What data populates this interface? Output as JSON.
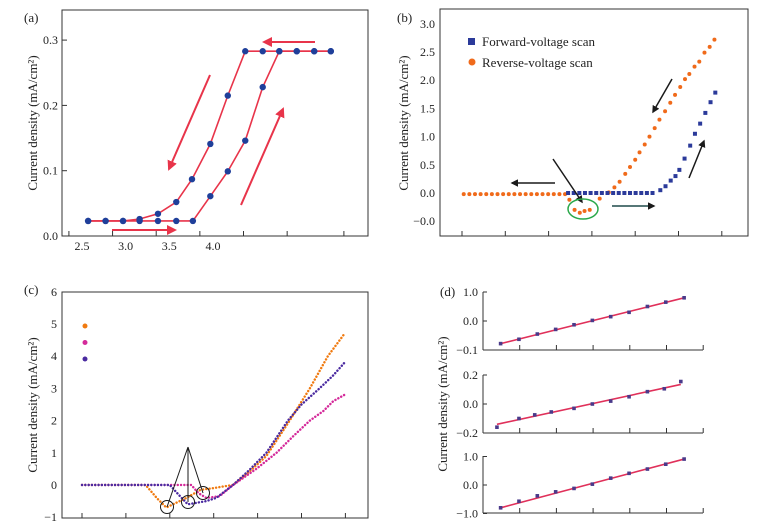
{
  "chart_data": [
    {
      "panel": "(a)",
      "type": "line",
      "ylabel": "Current density (mA/cm²)",
      "xlabel": "",
      "xlim": [
        2.35,
        5.85
      ],
      "ylim": [
        0.0,
        0.35
      ],
      "x_ticks": [
        "2.5",
        "3.0",
        "3.5",
        "4.0"
      ],
      "y_ticks": [
        "0.0",
        "0.1",
        "0.2",
        "0.3"
      ],
      "grid": false,
      "line_color": "#e8344a",
      "marker_color": "#1f3f9a",
      "series": [
        {
          "x": [
            2.57,
            2.77,
            2.97,
            3.16,
            3.37,
            3.58,
            3.77,
            3.97,
            4.17,
            4.37,
            4.57,
            4.76,
            4.96,
            5.16,
            5.35
          ],
          "y": [
            0.023,
            0.023,
            0.023,
            0.023,
            0.023,
            0.023,
            0.023,
            0.061,
            0.099,
            0.146,
            0.228,
            0.283,
            0.283,
            0.283,
            0.283
          ]
        },
        {
          "x": [
            5.35,
            5.16,
            4.96,
            4.76,
            4.57,
            4.37,
            4.17,
            3.97,
            3.76,
            3.58,
            3.37,
            3.16,
            2.97,
            2.77,
            2.57
          ],
          "y": [
            0.283,
            0.283,
            0.283,
            0.283,
            0.283,
            0.283,
            0.215,
            0.141,
            0.087,
            0.052,
            0.034,
            0.026,
            0.023,
            0.023,
            0.023
          ]
        }
      ]
    },
    {
      "panel": "(b)",
      "type": "scatter",
      "ylabel": "Current density (mA/cm²)",
      "ylim": [
        -0.75,
        3.25
      ],
      "y_ticks": [
        "3.0",
        "2.5",
        "2.0",
        "1.5",
        "1.0",
        "0.5",
        "0.0",
        "−0.0"
      ],
      "x_tick_count": 7,
      "grid": false,
      "legend": "top-left",
      "series": [
        {
          "name": "Forward-voltage scan",
          "color": "#2b3a9a",
          "marker": "square",
          "x": [
            2.45,
            2.58,
            2.71,
            2.84,
            2.97,
            3.1,
            3.23,
            3.36,
            3.49,
            3.62,
            3.75,
            3.88,
            4.01,
            4.14,
            4.27,
            4.4,
            4.58,
            4.7,
            4.82,
            4.93,
            5.02,
            5.14,
            5.27,
            5.38,
            5.5,
            5.62,
            5.74,
            5.85
          ],
          "y": [
            0,
            0,
            0,
            0,
            0,
            0,
            0,
            0,
            0,
            0,
            0,
            0,
            0,
            0,
            0,
            0,
            0.05,
            0.12,
            0.22,
            0.3,
            0.41,
            0.61,
            0.84,
            1.05,
            1.23,
            1.42,
            1.61,
            1.78
          ]
        },
        {
          "name": "Reverse-voltage scan",
          "color": "#f06a1a",
          "marker": "circle",
          "x": [
            0.04,
            0.17,
            0.3,
            0.43,
            0.56,
            0.69,
            0.82,
            0.95,
            1.08,
            1.21,
            1.34,
            1.47,
            1.6,
            1.73,
            1.86,
            1.99,
            2.12,
            2.25,
            2.38,
            2.48,
            2.6,
            2.72,
            2.83,
            2.95,
            3.18,
            3.39,
            3.52,
            3.64,
            3.77,
            3.88,
            4.0,
            4.1,
            4.22,
            4.33,
            4.45,
            4.56,
            4.69,
            4.81,
            4.92,
            5.04,
            5.15,
            5.25,
            5.37,
            5.48,
            5.6,
            5.72,
            5.83
          ],
          "y": [
            -0.02,
            -0.02,
            -0.02,
            -0.02,
            -0.02,
            -0.02,
            -0.02,
            -0.02,
            -0.02,
            -0.02,
            -0.02,
            -0.02,
            -0.02,
            -0.02,
            -0.02,
            -0.02,
            -0.02,
            -0.02,
            -0.02,
            -0.12,
            -0.3,
            -0.35,
            -0.32,
            -0.3,
            -0.1,
            0.01,
            0.1,
            0.2,
            0.34,
            0.46,
            0.59,
            0.72,
            0.86,
            1.0,
            1.15,
            1.3,
            1.45,
            1.6,
            1.74,
            1.88,
            2.02,
            2.11,
            2.24,
            2.33,
            2.49,
            2.59,
            2.72
          ]
        }
      ],
      "annotation_colors": {
        "arrows": "#1a1a1a",
        "highlight_ellipse": "#2aa84a"
      }
    },
    {
      "panel": "(c)",
      "type": "line",
      "ylabel": "Current density (mA/cm²)",
      "ylim": [
        -1,
        6
      ],
      "y_ticks": [
        "6",
        "5",
        "4",
        "3",
        "2",
        "1",
        "0",
        "−1"
      ],
      "x_tick_count": 7,
      "grid": false,
      "legend": "top-left",
      "series": [
        {
          "color": "#f07a10",
          "x": [
            0,
            0.5,
            1.0,
            1.45,
            1.7,
            1.92,
            2.15,
            2.38,
            2.7,
            2.98,
            3.2,
            3.44,
            3.8,
            4.2,
            4.73,
            5.19,
            5.6,
            5.98
          ],
          "y": [
            0,
            0,
            0,
            0,
            -0.4,
            -0.7,
            -0.55,
            -0.4,
            -0.15,
            -0.1,
            -0.05,
            0,
            0.4,
            0.9,
            2.0,
            3.0,
            4.0,
            4.7
          ]
        },
        {
          "color": "#d42a9a",
          "x": [
            0,
            0.5,
            1.0,
            1.5,
            2.0,
            2.49,
            2.65,
            2.83,
            3.13,
            3.44,
            3.97,
            4.43,
            4.8,
            5.19,
            5.5,
            5.72,
            5.98
          ],
          "y": [
            0,
            0,
            0,
            0,
            0,
            0,
            -0.25,
            -0.4,
            -0.35,
            0,
            0.5,
            1.0,
            1.5,
            2.0,
            2.3,
            2.6,
            2.8
          ]
        },
        {
          "color": "#4a2aa0",
          "x": [
            0,
            0.5,
            1.0,
            1.5,
            2.0,
            2.2,
            2.41,
            2.83,
            3.06,
            3.44,
            3.8,
            4.2,
            4.69,
            5.0,
            5.41,
            5.72,
            5.98
          ],
          "y": [
            0,
            0,
            0,
            0,
            0,
            -0.3,
            -0.6,
            -0.5,
            -0.4,
            0,
            0.45,
            1.0,
            2.0,
            2.5,
            3.0,
            3.4,
            3.8
          ]
        }
      ]
    },
    {
      "panel": "(d)",
      "type": "scatter",
      "ylabel": "Current density (mA/cm²)",
      "x_tick_count": 6,
      "grid": false,
      "marker_color": "#4a3a8a",
      "fit_color": "#e0305a",
      "subplots": [
        {
          "y_ticks": [
            "1.0",
            "0.0",
            "−0.1"
          ],
          "ylim": [
            -1.0,
            1.0
          ],
          "x": [
            0.48,
            0.98,
            1.48,
            1.98,
            2.48,
            2.98,
            3.48,
            3.98,
            4.48,
            4.98,
            5.48
          ],
          "y": [
            -0.78,
            -0.63,
            -0.45,
            -0.29,
            -0.13,
            0.02,
            0.15,
            0.3,
            0.5,
            0.65,
            0.8
          ],
          "fit": [
            -0.78,
            0.8
          ]
        },
        {
          "y_ticks": [
            "0.2",
            "0.0",
            "−0.2"
          ],
          "ylim": [
            -0.2,
            0.2
          ],
          "x": [
            0.38,
            0.98,
            1.41,
            1.86,
            2.48,
            2.98,
            3.48,
            3.98,
            4.48,
            4.94,
            5.39
          ],
          "y": [
            -0.16,
            -0.1,
            -0.075,
            -0.055,
            -0.03,
            0.0,
            0.02,
            0.05,
            0.085,
            0.105,
            0.155
          ],
          "fit": [
            -0.14,
            0.135
          ]
        },
        {
          "y_ticks": [
            "1.0",
            "0.0",
            "−1.0"
          ],
          "ylim": [
            -1.0,
            1.0
          ],
          "x": [
            0.48,
            0.98,
            1.48,
            1.98,
            2.48,
            2.98,
            3.48,
            3.98,
            4.48,
            4.98,
            5.48
          ],
          "y": [
            -0.8,
            -0.57,
            -0.38,
            -0.24,
            -0.12,
            0.03,
            0.24,
            0.41,
            0.56,
            0.73,
            0.91
          ],
          "fit": [
            -0.8,
            0.91
          ]
        }
      ]
    }
  ]
}
